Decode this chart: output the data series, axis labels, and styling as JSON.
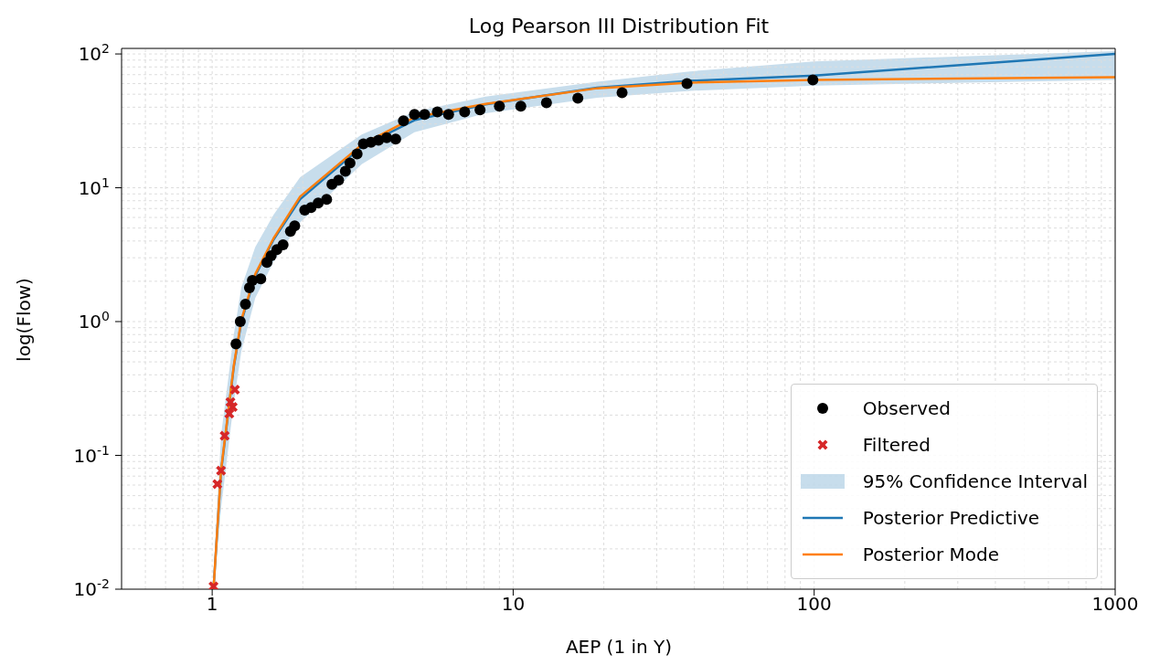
{
  "chart_data": {
    "type": "scatter",
    "title": "Log Pearson III Distribution Fit",
    "xlabel": "AEP (1 in Y)",
    "ylabel": "log(Flow)",
    "log": "xy",
    "grid": true,
    "legend": "bottom right",
    "annotations": [
      "95% Confidence Interval"
    ],
    "xlim": [
      0.5,
      1000
    ],
    "xticks": [
      1,
      10,
      100,
      1000
    ],
    "ylim": [
      0.01,
      110
    ],
    "yticks": [
      {
        "value": 0.01,
        "label": "10$^{-2}$"
      },
      {
        "value": 0.1,
        "label": "10$^{-1}$"
      },
      {
        "value": 1,
        "label": "10$^{0}$"
      },
      {
        "value": 10,
        "label": "10$^{1}$"
      },
      {
        "value": 100,
        "label": "10$^{2}$"
      }
    ],
    "series": [
      {
        "name": "Observed",
        "type": "scatter",
        "marker": "circle",
        "color": "#000000",
        "x": [
          1.2,
          1.24,
          1.29,
          1.33,
          1.36,
          1.45,
          1.52,
          1.57,
          1.64,
          1.72,
          1.82,
          1.88,
          2.03,
          2.13,
          2.25,
          2.4,
          2.5,
          2.63,
          2.77,
          2.87,
          3.03,
          3.18,
          3.37,
          3.57,
          3.8,
          4.07,
          4.32,
          4.7,
          5.08,
          5.6,
          6.1,
          6.9,
          7.76,
          9.0,
          10.6,
          12.9,
          16.4,
          23.0,
          37.8,
          99
        ],
        "values": [
          0.68,
          1.0,
          1.35,
          1.79,
          2.03,
          2.09,
          2.77,
          3.1,
          3.45,
          3.74,
          4.73,
          5.2,
          6.8,
          7.1,
          7.7,
          8.2,
          10.6,
          11.4,
          13.3,
          15.3,
          17.9,
          21.3,
          21.9,
          22.7,
          23.7,
          23.1,
          31.7,
          35.3,
          35.3,
          36.9,
          35.3,
          36.9,
          38.2,
          40.7,
          40.7,
          43.2,
          46.7,
          51.4,
          60,
          64
        ]
      },
      {
        "name": "Filtered",
        "type": "scatter",
        "marker": "cross",
        "color": "#d62728",
        "x": [
          1.01,
          1.04,
          1.07,
          1.1,
          1.14,
          1.15,
          1.17,
          1.19
        ],
        "values": [
          0.0105,
          0.061,
          0.077,
          0.14,
          0.205,
          0.25,
          0.23,
          0.31
        ]
      },
      {
        "name": "Posterior Predictive",
        "type": "line",
        "marker": "none",
        "line_style": "solid",
        "color": "#1f77b4",
        "x": [
          1.01,
          1.07,
          1.18,
          1.25,
          1.39,
          1.6,
          1.96,
          3.14,
          4.7,
          8.1,
          19,
          38.6,
          100,
          1000
        ],
        "values": [
          0.01,
          0.075,
          0.46,
          1.0,
          2.2,
          4.1,
          8.2,
          20.3,
          32,
          42,
          56,
          63,
          69,
          100
        ],
        "lower": [
          0.01,
          0.04,
          0.25,
          0.6,
          1.5,
          2.8,
          5.5,
          15,
          26,
          36,
          47,
          53,
          58,
          64
        ],
        "upper": [
          0.012,
          0.14,
          0.8,
          1.8,
          3.6,
          6.3,
          12,
          25,
          37,
          48,
          62,
          74,
          88,
          105
        ]
      },
      {
        "name": "Posterior Mode",
        "type": "line",
        "marker": "none",
        "line_style": "solid",
        "color": "#ff7f0e",
        "x": [
          1.01,
          1.07,
          1.18,
          1.25,
          1.39,
          1.6,
          1.96,
          3.14,
          4.7,
          8.1,
          19,
          38.6,
          100,
          1000
        ],
        "values": [
          0.01,
          0.077,
          0.47,
          1.03,
          2.26,
          4.2,
          8.6,
          21,
          33.6,
          42.4,
          55.4,
          61,
          64,
          67
        ]
      }
    ]
  }
}
